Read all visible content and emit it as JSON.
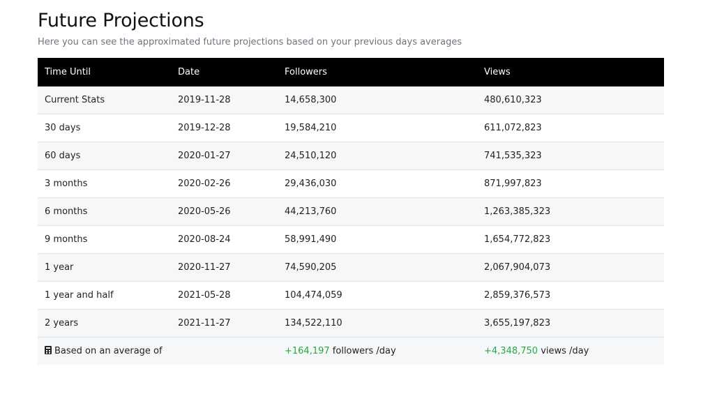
{
  "header": {
    "title": "Future Projections",
    "subtitle": "Here you can see the approximated future projections based on your previous days averages"
  },
  "table": {
    "columns": [
      "Time Until",
      "Date",
      "Followers",
      "Views"
    ],
    "rows": [
      {
        "time": "Current Stats",
        "date": "2019-11-28",
        "followers": "14,658,300",
        "views": "480,610,323"
      },
      {
        "time": "30 days",
        "date": "2019-12-28",
        "followers": "19,584,210",
        "views": "611,072,823"
      },
      {
        "time": "60 days",
        "date": "2020-01-27",
        "followers": "24,510,120",
        "views": "741,535,323"
      },
      {
        "time": "3 months",
        "date": "2020-02-26",
        "followers": "29,436,030",
        "views": "871,997,823"
      },
      {
        "time": "6 months",
        "date": "2020-05-26",
        "followers": "44,213,760",
        "views": "1,263,385,323"
      },
      {
        "time": "9 months",
        "date": "2020-08-24",
        "followers": "58,991,490",
        "views": "1,654,772,823"
      },
      {
        "time": "1 year",
        "date": "2020-11-27",
        "followers": "74,590,205",
        "views": "2,067,904,073"
      },
      {
        "time": "1 year and half",
        "date": "2021-05-28",
        "followers": "104,474,059",
        "views": "2,859,376,573"
      },
      {
        "time": "2 years",
        "date": "2021-11-27",
        "followers": "134,522,110",
        "views": "3,655,197,823"
      }
    ],
    "footer": {
      "icon": "calculator-icon",
      "label": "Based on an average of",
      "followers_delta": "+164,197",
      "followers_unit": "followers /day",
      "views_delta": "+4,348,750",
      "views_unit": "views /day"
    }
  },
  "colors": {
    "header_bg": "#000000",
    "positive": "#28a745",
    "stripe": "#f6f7f8"
  }
}
